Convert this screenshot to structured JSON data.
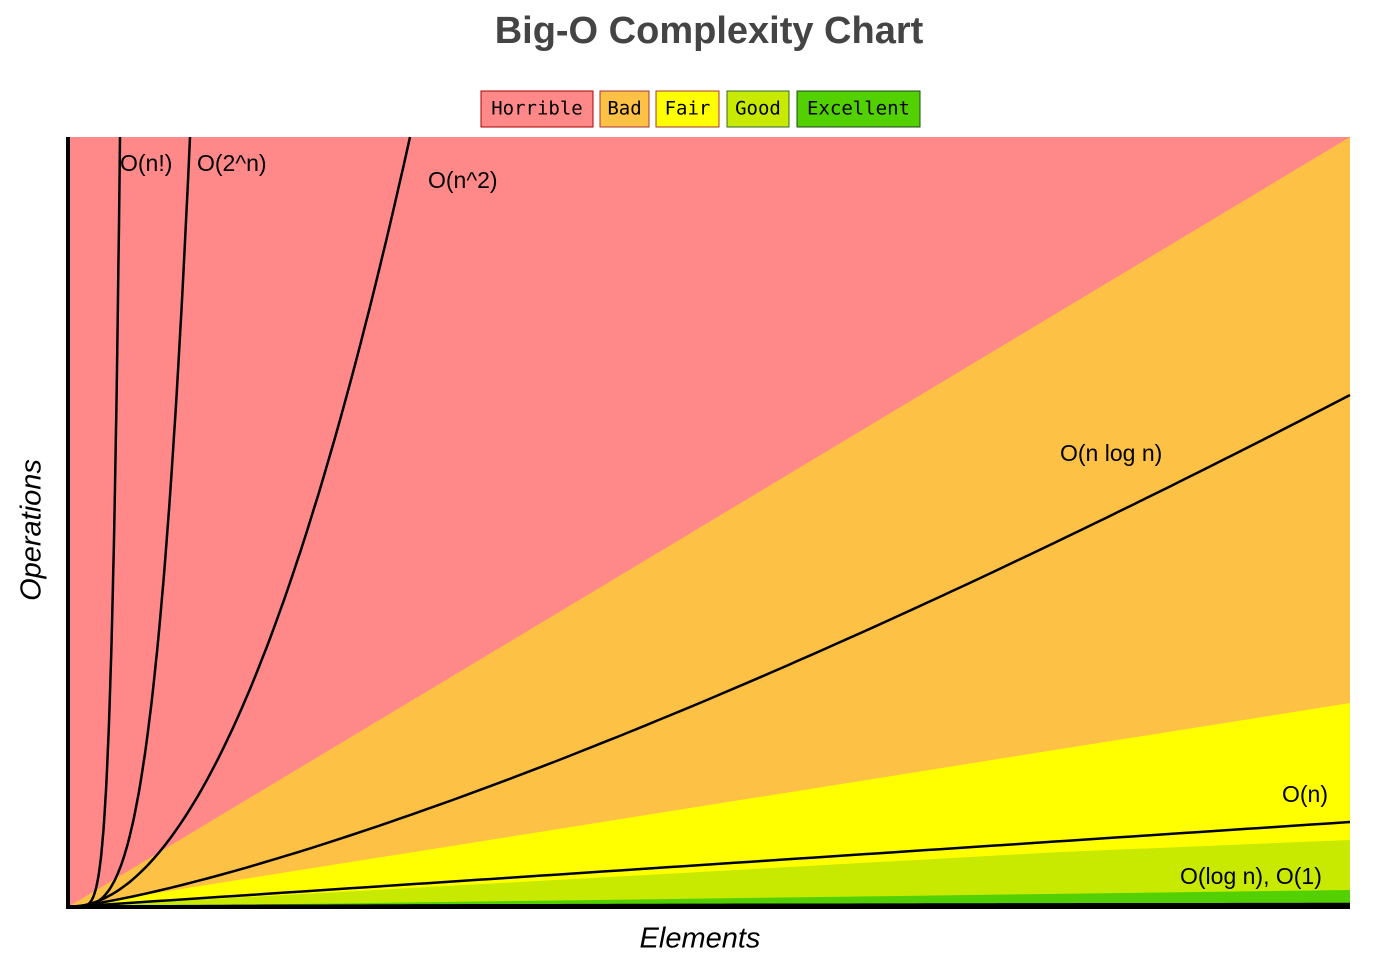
{
  "title": "Big-O Complexity Chart",
  "legend": [
    "Horrible",
    "Bad",
    "Fair",
    "Good",
    "Excellent"
  ],
  "y_axis_label": "Operations",
  "x_axis_label": "Elements",
  "curve_labels": [
    "O(n!)",
    "O(2^n)",
    "O(n^2)",
    "O(n log n)",
    "O(n)",
    "O(log n), O(1)"
  ]
}
